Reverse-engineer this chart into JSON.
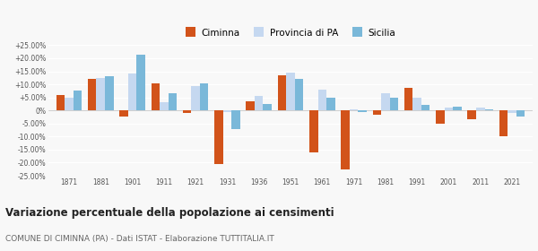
{
  "years": [
    1871,
    1881,
    1901,
    1911,
    1921,
    1931,
    1936,
    1951,
    1961,
    1971,
    1981,
    1991,
    2001,
    2011,
    2021
  ],
  "ciminna": [
    6.0,
    12.0,
    -2.5,
    10.5,
    -1.0,
    -20.5,
    3.5,
    13.5,
    -16.0,
    -22.5,
    -1.5,
    8.5,
    -5.0,
    -3.5,
    -10.0
  ],
  "provincia_pa": [
    5.0,
    12.5,
    14.0,
    3.0,
    9.5,
    -0.5,
    5.5,
    14.5,
    8.0,
    0.5,
    6.5,
    5.0,
    1.0,
    1.0,
    -1.0
  ],
  "sicilia": [
    7.5,
    13.0,
    21.5,
    6.5,
    10.5,
    -7.0,
    2.5,
    12.0,
    5.0,
    -0.5,
    5.0,
    2.0,
    1.5,
    0.5,
    -2.5
  ],
  "ciminna_color": "#d2531a",
  "provincia_color": "#c5d8f0",
  "sicilia_color": "#7ab8d9",
  "title": "Variazione percentuale della popolazione ai censimenti",
  "subtitle": "COMUNE DI CIMINNA (PA) - Dati ISTAT - Elaborazione TUTTITALIA.IT",
  "legend_labels": [
    "Ciminna",
    "Provincia di PA",
    "Sicilia"
  ],
  "ylim": [
    -25,
    25
  ],
  "yticks": [
    -25,
    -20,
    -15,
    -10,
    -5,
    0,
    5,
    10,
    15,
    20,
    25
  ],
  "bg_color": "#f8f8f8"
}
